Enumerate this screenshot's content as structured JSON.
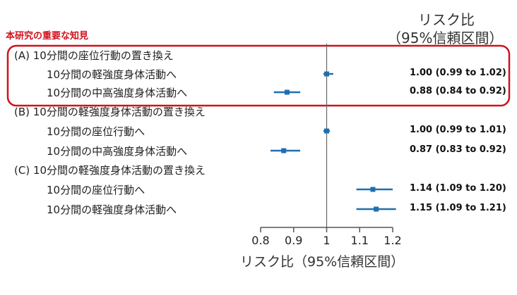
{
  "header": {
    "line1": "リスク比",
    "line2": "（95%信頼区間）"
  },
  "highlight": {
    "label": "本研究の重要な知見",
    "color": "#d0111b"
  },
  "colors": {
    "point": "#1f6fb0",
    "axis": "#555555"
  },
  "chart_data": {
    "type": "forest",
    "xlabel": "リスク比（95%信頼区間）",
    "xlim": [
      0.8,
      1.2
    ],
    "xticks": [
      0.8,
      0.9,
      1,
      1.1,
      1.2
    ],
    "xtick_labels": [
      "0.8",
      "0.9",
      "1",
      "1.1",
      "1.2"
    ],
    "reference_line": 1,
    "groups": [
      {
        "label": "(A) 10分間の座位行動の置き換え",
        "highlighted": true,
        "rows": [
          {
            "label": "10分間の軽強度身体活動へ",
            "estimate": 1.0,
            "lower": 0.99,
            "upper": 1.02,
            "text": "1.00 (0.99 to 1.02)"
          },
          {
            "label": "10分間の中高強度身体活動へ",
            "estimate": 0.88,
            "lower": 0.84,
            "upper": 0.92,
            "text": "0.88 (0.84 to 0.92)"
          }
        ]
      },
      {
        "label": "(B) 10分間の軽強度身体活動の置き換え",
        "highlighted": false,
        "rows": [
          {
            "label": "10分間の座位行動へ",
            "estimate": 1.0,
            "lower": 0.99,
            "upper": 1.01,
            "text": "1.00 (0.99 to 1.01)"
          },
          {
            "label": "10分間の中高強度身体活動へ",
            "estimate": 0.87,
            "lower": 0.83,
            "upper": 0.92,
            "text": "0.87 (0.83 to 0.92)"
          }
        ]
      },
      {
        "label": "(C) 10分間の軽強度身体活動の置き換え",
        "highlighted": false,
        "rows": [
          {
            "label": "10分間の座位行動へ",
            "estimate": 1.14,
            "lower": 1.09,
            "upper": 1.2,
            "text": "1.14 (1.09 to 1.20)"
          },
          {
            "label": "10分間の軽強度身体活動へ",
            "estimate": 1.15,
            "lower": 1.09,
            "upper": 1.21,
            "text": "1.15 (1.09 to 1.21)"
          }
        ]
      }
    ]
  }
}
